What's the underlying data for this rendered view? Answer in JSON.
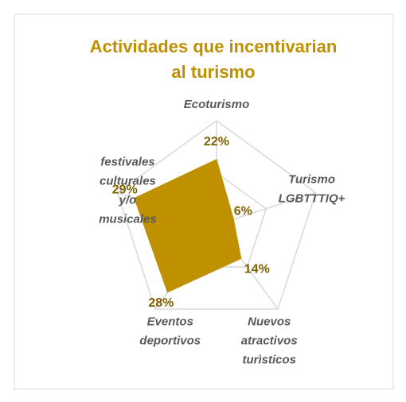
{
  "chart_data": {
    "type": "radar",
    "title": "Actividades que incentivarian\nal turismo",
    "categories": [
      "Ecoturismo",
      "Turismo\nLGBTTTIQ+",
      "Nuevos\natractivos\nturìsticos",
      "Eventos\ndeportivos",
      "festivales\nculturales\ny/o\nmusicales"
    ],
    "values": [
      22,
      6,
      14,
      28,
      29
    ],
    "value_labels": [
      "22%",
      "6%",
      "14%",
      "28%",
      "29%"
    ],
    "color": "#bf9000",
    "ylim": [
      0,
      35
    ],
    "yticks": [
      0,
      17.5,
      35
    ],
    "grid": true
  }
}
